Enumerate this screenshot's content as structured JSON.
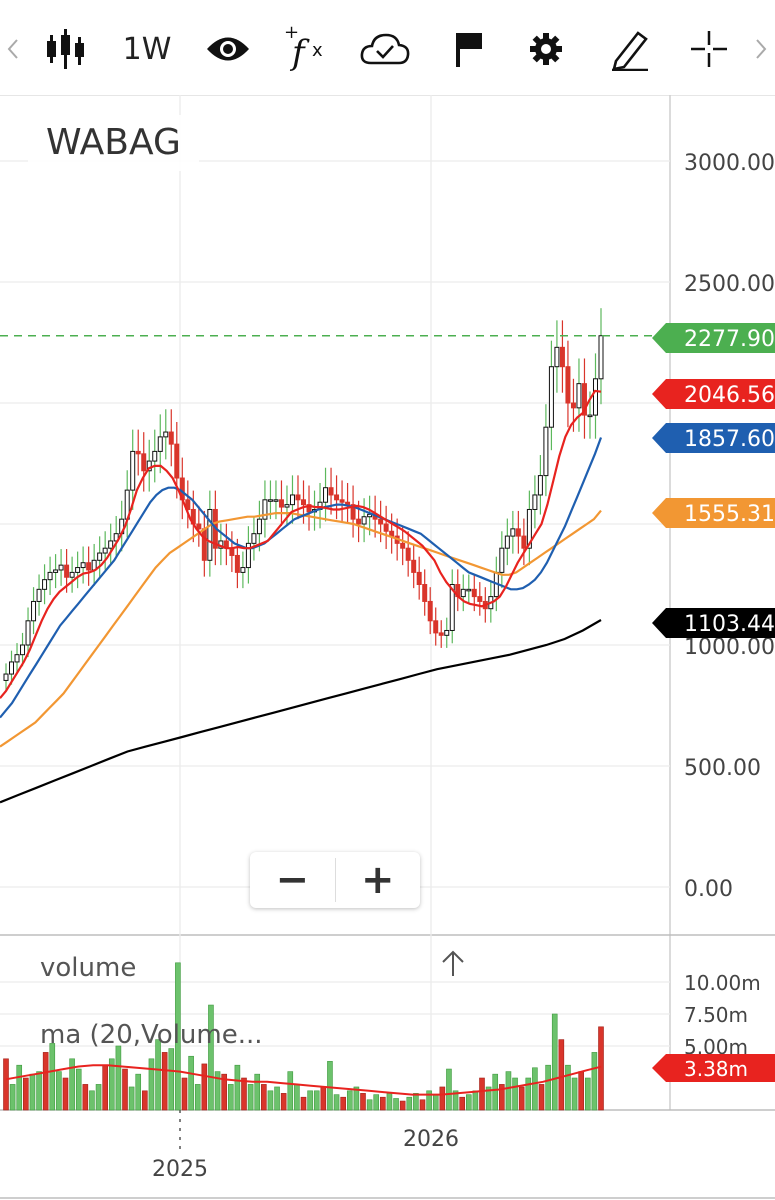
{
  "toolbar": {
    "timeframe": "1W",
    "icons": [
      "chevron-left-icon",
      "candlestick-icon",
      "eye-icon",
      "function-icon",
      "cloud-save-icon",
      "flag-icon",
      "gear-icon",
      "pencil-icon",
      "crosshair-icon",
      "chevron-right-icon"
    ]
  },
  "chart_data": {
    "type": "candlestick",
    "title": "WABAG",
    "price_axis": {
      "ticks": [
        "3000.00",
        "2500.00",
        "1000.00",
        "500.00",
        "0.00"
      ],
      "ylim": [
        0,
        3250
      ]
    },
    "x_axis": {
      "ticks": [
        "2025",
        "2026"
      ]
    },
    "last_price_line": 2277.9,
    "price_tags": [
      {
        "label": "2277.90",
        "value": 2277.9,
        "color": "#4caf50"
      },
      {
        "label": "2046.56",
        "value": 2046.56,
        "color": "#e8231f"
      },
      {
        "label": "1857.60",
        "value": 1857.6,
        "color": "#1f5fb0"
      },
      {
        "label": "1555.31",
        "value": 1555.31,
        "color": "#f29733"
      },
      {
        "label": "1103.44",
        "value": 1103.44,
        "color": "#000000"
      }
    ],
    "close": [
      880,
      930,
      960,
      1000,
      1100,
      1180,
      1230,
      1270,
      1300,
      1310,
      1330,
      1280,
      1300,
      1320,
      1340,
      1310,
      1350,
      1380,
      1400,
      1430,
      1460,
      1520,
      1640,
      1800,
      1790,
      1720,
      1760,
      1800,
      1860,
      1880,
      1830,
      1690,
      1600,
      1560,
      1500,
      1480,
      1350,
      1560,
      1400,
      1430,
      1400,
      1370,
      1300,
      1320,
      1420,
      1460,
      1520,
      1600,
      1600,
      1600,
      1570,
      1580,
      1620,
      1600,
      1580,
      1550,
      1560,
      1590,
      1650,
      1620,
      1600,
      1590,
      1580,
      1520,
      1500,
      1530,
      1540,
      1520,
      1500,
      1470,
      1450,
      1420,
      1400,
      1350,
      1300,
      1250,
      1180,
      1100,
      1050,
      1040,
      1060,
      1250,
      1200,
      1230,
      1230,
      1200,
      1180,
      1150,
      1200,
      1300,
      1400,
      1450,
      1480,
      1450,
      1400,
      1560,
      1620,
      1700,
      1900,
      2150,
      2230,
      2150,
      2000,
      1980,
      2080,
      1950,
      1950,
      2100,
      2277.9
    ],
    "ma_red": [
      780,
      810,
      850,
      890,
      930,
      980,
      1040,
      1100,
      1150,
      1190,
      1220,
      1240,
      1260,
      1280,
      1295,
      1300,
      1310,
      1330,
      1360,
      1400,
      1440,
      1490,
      1560,
      1640,
      1690,
      1730,
      1740,
      1740,
      1720,
      1690,
      1640,
      1580,
      1520,
      1480,
      1450,
      1430,
      1420,
      1410,
      1400,
      1400,
      1405,
      1400,
      1400,
      1410,
      1420,
      1430,
      1460,
      1490,
      1520,
      1550,
      1560,
      1570,
      1575,
      1570,
      1570,
      1565,
      1560,
      1560,
      1565,
      1570,
      1575,
      1570,
      1560,
      1545,
      1530,
      1515,
      1500,
      1485,
      1470,
      1450,
      1430,
      1410,
      1380,
      1350,
      1300,
      1260,
      1230,
      1200,
      1180,
      1170,
      1165,
      1160,
      1170,
      1180,
      1200,
      1240,
      1290,
      1340,
      1380,
      1420,
      1460,
      1500,
      1580,
      1680,
      1780,
      1860,
      1910,
      1940,
      1960,
      2010,
      2050,
      2046.56
    ],
    "ma_blue": [
      700,
      730,
      760,
      800,
      840,
      880,
      920,
      960,
      1000,
      1040,
      1080,
      1110,
      1140,
      1170,
      1200,
      1230,
      1260,
      1290,
      1320,
      1350,
      1390,
      1430,
      1470,
      1510,
      1550,
      1590,
      1620,
      1640,
      1650,
      1650,
      1640,
      1620,
      1600,
      1570,
      1540,
      1510,
      1480,
      1460,
      1440,
      1420,
      1410,
      1400,
      1400,
      1410,
      1420,
      1440,
      1460,
      1480,
      1500,
      1520,
      1530,
      1540,
      1550,
      1560,
      1570,
      1575,
      1580,
      1580,
      1575,
      1570,
      1560,
      1550,
      1540,
      1530,
      1520,
      1510,
      1500,
      1490,
      1480,
      1470,
      1460,
      1440,
      1420,
      1400,
      1380,
      1360,
      1340,
      1320,
      1300,
      1290,
      1280,
      1270,
      1260,
      1250,
      1240,
      1230,
      1230,
      1235,
      1250,
      1270,
      1300,
      1340,
      1390,
      1440,
      1490,
      1550,
      1610,
      1670,
      1730,
      1790,
      1857.6
    ],
    "ma_orange": [
      580,
      600,
      620,
      640,
      660,
      680,
      710,
      740,
      770,
      800,
      840,
      880,
      920,
      960,
      1000,
      1040,
      1080,
      1120,
      1160,
      1200,
      1240,
      1280,
      1320,
      1350,
      1380,
      1400,
      1420,
      1440,
      1460,
      1480,
      1500,
      1510,
      1515,
      1520,
      1525,
      1530,
      1530,
      1535,
      1540,
      1545,
      1545,
      1545,
      1540,
      1535,
      1530,
      1525,
      1520,
      1515,
      1510,
      1505,
      1500,
      1490,
      1480,
      1470,
      1460,
      1450,
      1440,
      1430,
      1420,
      1410,
      1400,
      1390,
      1380,
      1370,
      1360,
      1350,
      1340,
      1330,
      1320,
      1310,
      1300,
      1290,
      1290,
      1300,
      1320,
      1340,
      1360,
      1380,
      1400,
      1420,
      1440,
      1460,
      1480,
      1500,
      1520,
      1555.31
    ],
    "ma_black": [
      350,
      380,
      410,
      440,
      470,
      500,
      530,
      560,
      580,
      600,
      620,
      640,
      660,
      680,
      700,
      720,
      740,
      760,
      780,
      800,
      820,
      840,
      860,
      880,
      900,
      915,
      930,
      945,
      960,
      980,
      1000,
      1025,
      1060,
      1103.44
    ],
    "volume": {
      "label": "volume",
      "ma_label": "ma (20,Volume...",
      "axis_ticks": [
        "10.00m",
        "7.50m",
        "5.00m"
      ],
      "ylim_m": [
        0,
        12
      ],
      "last_tag": "3.38m",
      "last_tag_color": "#e8231f",
      "bars_m": [
        4.0,
        2.0,
        3.5,
        2.5,
        2.8,
        3.0,
        4.5,
        5.2,
        3.0,
        2.5,
        4.0,
        3.2,
        2.0,
        1.5,
        2.0,
        3.5,
        4.0,
        5.0,
        3.2,
        1.8,
        2.8,
        1.5,
        4.0,
        5.5,
        4.5,
        4.8,
        11.5,
        2.5,
        4.2,
        2.0,
        3.6,
        8.2,
        3.0,
        2.8,
        2.0,
        3.5,
        2.5,
        2.0,
        2.8,
        2.0,
        1.5,
        1.8,
        1.3,
        3.0,
        2.0,
        1.0,
        1.5,
        1.5,
        1.8,
        3.8,
        1.2,
        1.0,
        1.5,
        1.8,
        1.3,
        0.8,
        1.2,
        1.0,
        1.3,
        0.9,
        0.7,
        1.0,
        1.3,
        0.8,
        1.5,
        1.2,
        1.8,
        3.2,
        1.5,
        1.0,
        1.2,
        1.5,
        2.5,
        1.8,
        2.8,
        2.0,
        3.0,
        2.5,
        1.8,
        2.5,
        3.3,
        2.0,
        3.5,
        7.5,
        5.5,
        3.5,
        2.5,
        3.0,
        2.5,
        4.5,
        6.5
      ],
      "ma_m": [
        2.4,
        2.6,
        2.8,
        3.0,
        3.2,
        3.4,
        3.5,
        3.5,
        3.4,
        3.3,
        3.2,
        3.1,
        3.0,
        2.8,
        2.6,
        2.4,
        2.3,
        2.2,
        2.2,
        2.1,
        2.0,
        1.9,
        1.8,
        1.7,
        1.6,
        1.5,
        1.4,
        1.3,
        1.2,
        1.2,
        1.2,
        1.3,
        1.4,
        1.5,
        1.6,
        1.8,
        2.0,
        2.2,
        2.5,
        2.8,
        3.1,
        3.38
      ]
    }
  }
}
